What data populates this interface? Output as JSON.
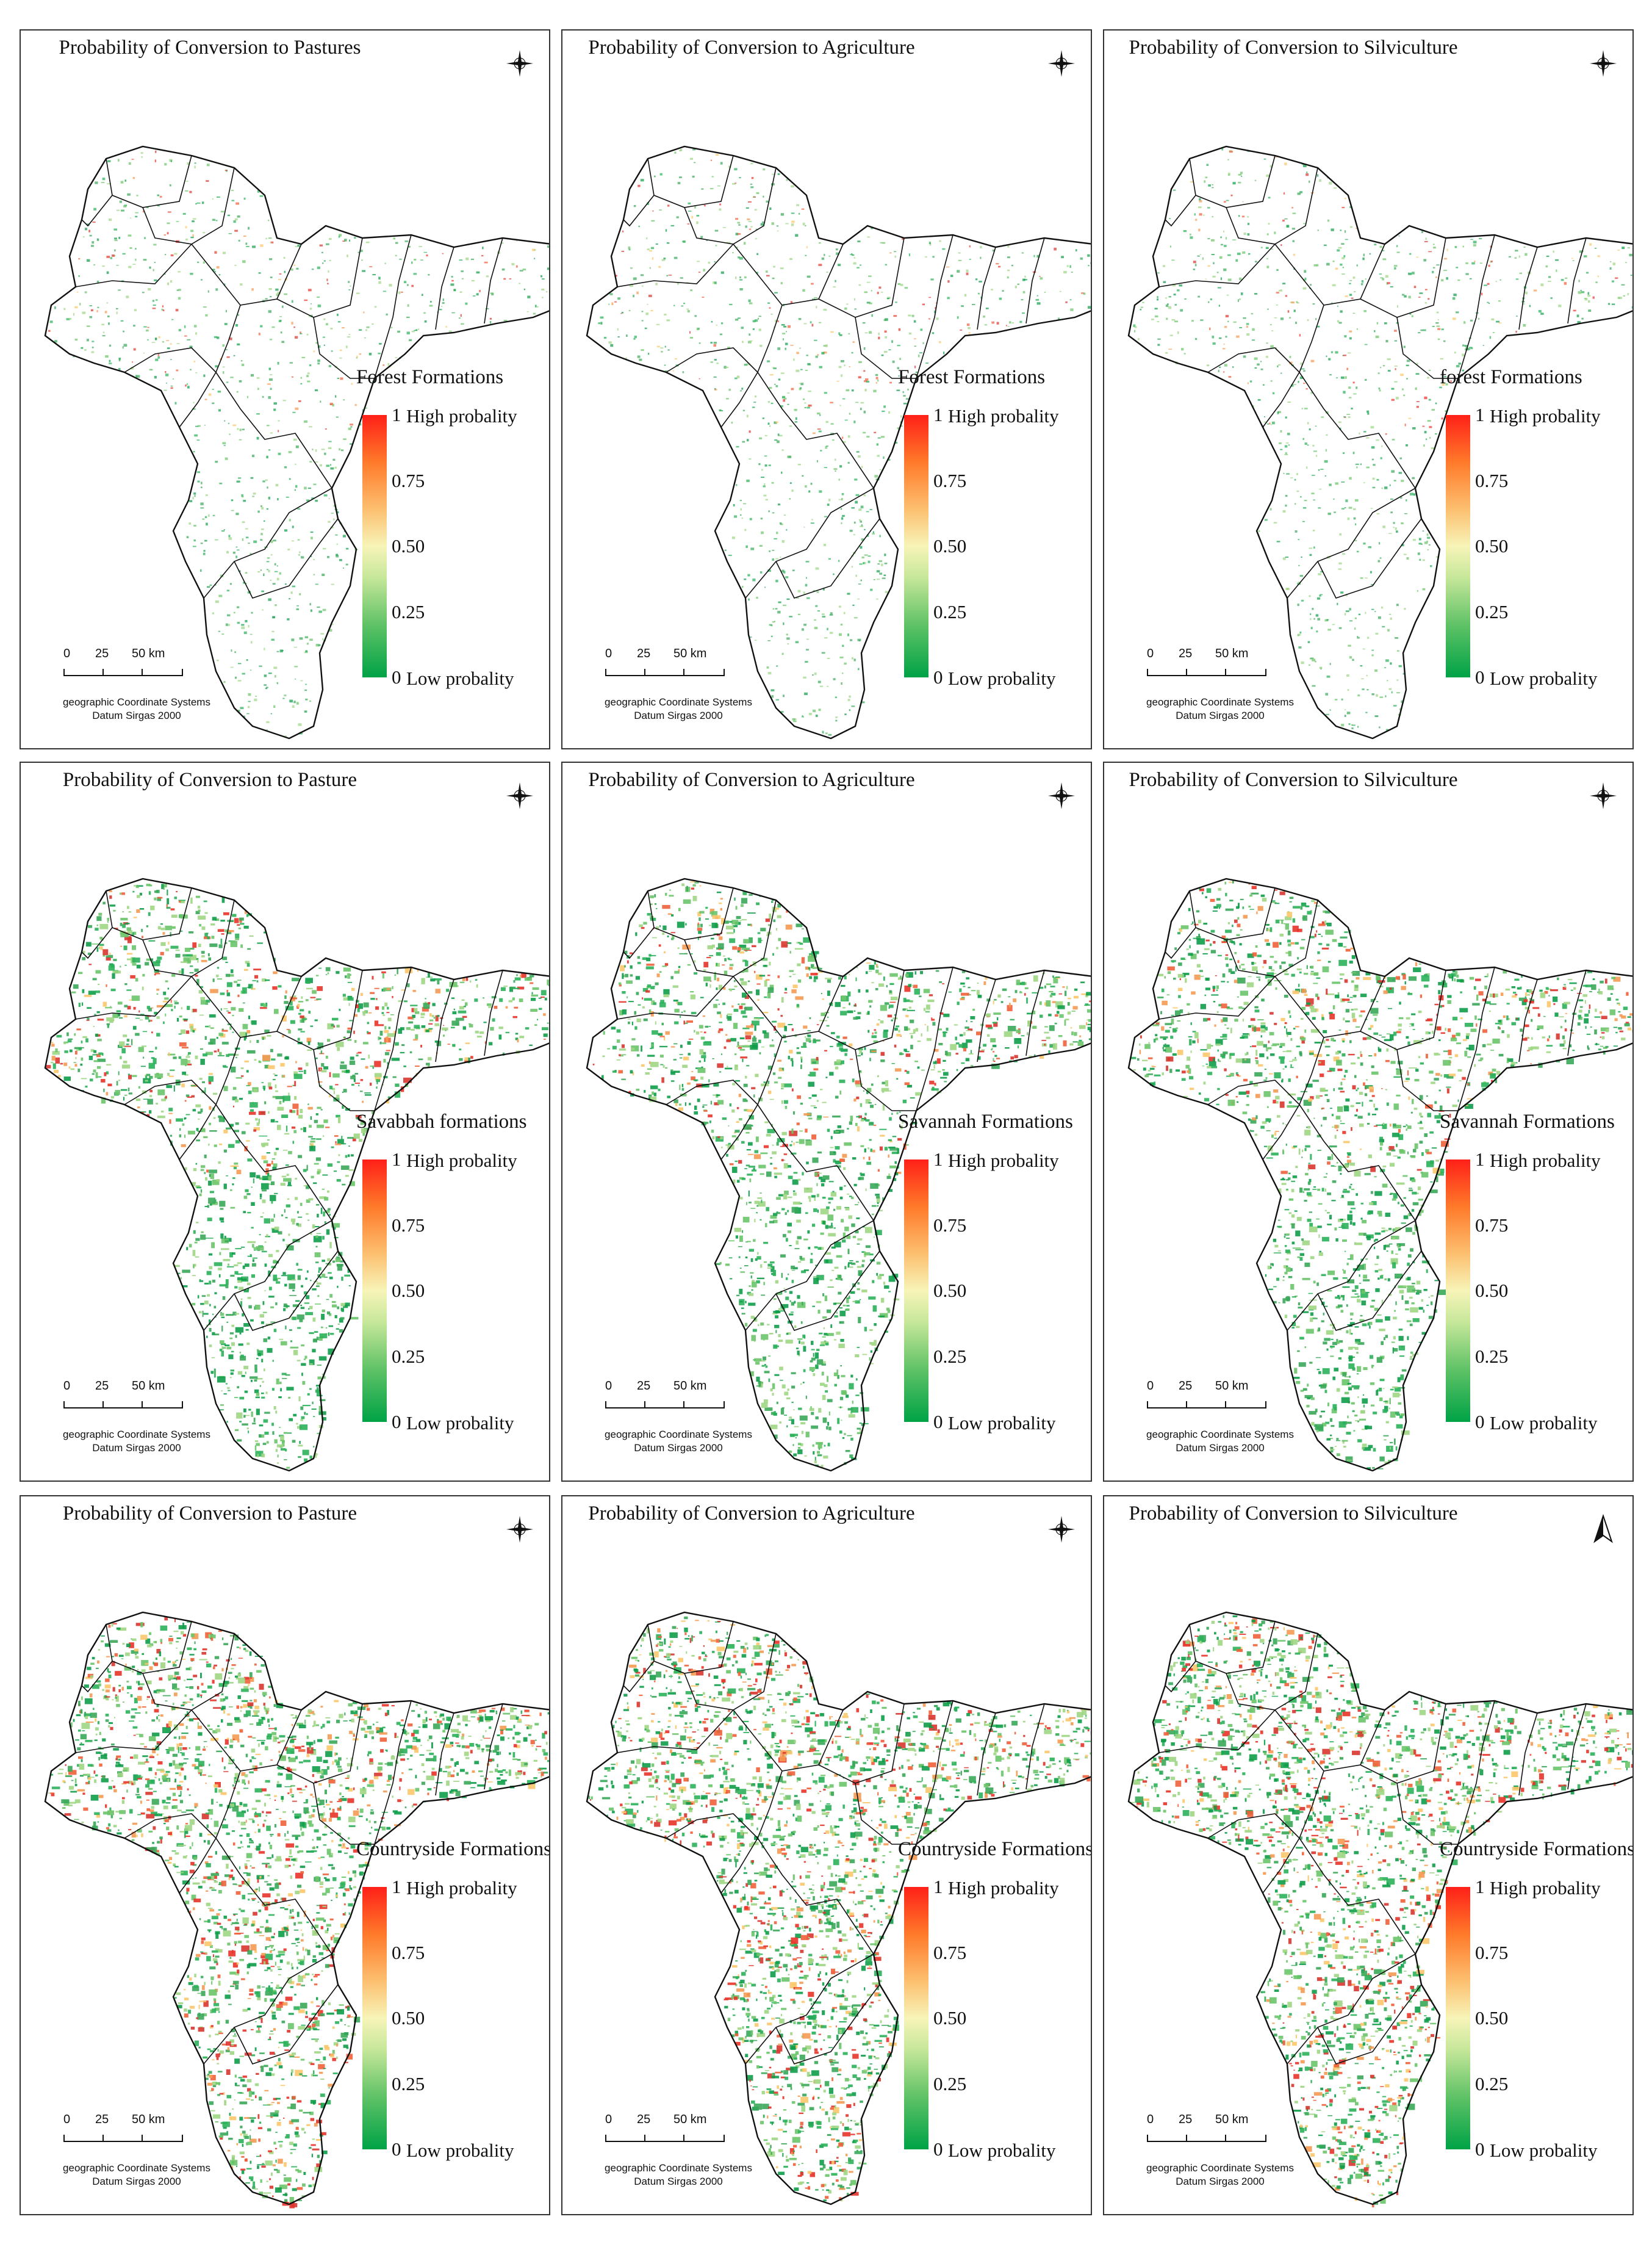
{
  "colorbar": {
    "high": "#ff2018",
    "mid": "#f7f4b8",
    "low": "#00a246"
  },
  "common": {
    "tick_1": "1",
    "tick_075": "0.75",
    "tick_050": "0.50",
    "tick_025": "0.25",
    "tick_0": "0",
    "high": "High probality",
    "low": "Low probality",
    "scale_labels": [
      "0",
      "25",
      "50 km"
    ],
    "coord_line1": "geographic Coordinate Systems",
    "coord_line2": "Datum Sirgas 2000"
  },
  "panels": [
    {
      "title": "Probability of Conversion to Pastures",
      "legend": "Forest Formations",
      "intensity": "low",
      "icon": "compass-rose-icon"
    },
    {
      "title": "Probability of Conversion to Agriculture",
      "legend": "Forest Formations",
      "intensity": "low",
      "icon": "compass-rose-icon"
    },
    {
      "title": "Probability of Conversion to Silviculture",
      "legend": "forest Formations",
      "intensity": "low",
      "icon": "compass-rose-icon"
    },
    {
      "title": "Probability of Conversion to Pasture",
      "legend": "Savabbah formations",
      "intensity": "med",
      "icon": "compass-rose-icon"
    },
    {
      "title": "Probability of Conversion to Agriculture",
      "legend": "Savannah Formations",
      "intensity": "med",
      "icon": "compass-rose-icon"
    },
    {
      "title": "Probability of Conversion to Silviculture",
      "legend": "Savannah Formations",
      "intensity": "med",
      "icon": "compass-rose-icon"
    },
    {
      "title": "Probability of Conversion to Pasture",
      "legend": "Countryside Formations",
      "intensity": "high",
      "icon": "compass-rose-icon"
    },
    {
      "title": "Probability of Conversion to Agriculture",
      "legend": "Countryside Formations",
      "intensity": "high",
      "icon": "compass-rose-icon"
    },
    {
      "title": "Probability of Conversion to Silviculture",
      "legend": "Countryside Formations",
      "intensity": "high",
      "icon": "north-arrow-icon"
    }
  ]
}
